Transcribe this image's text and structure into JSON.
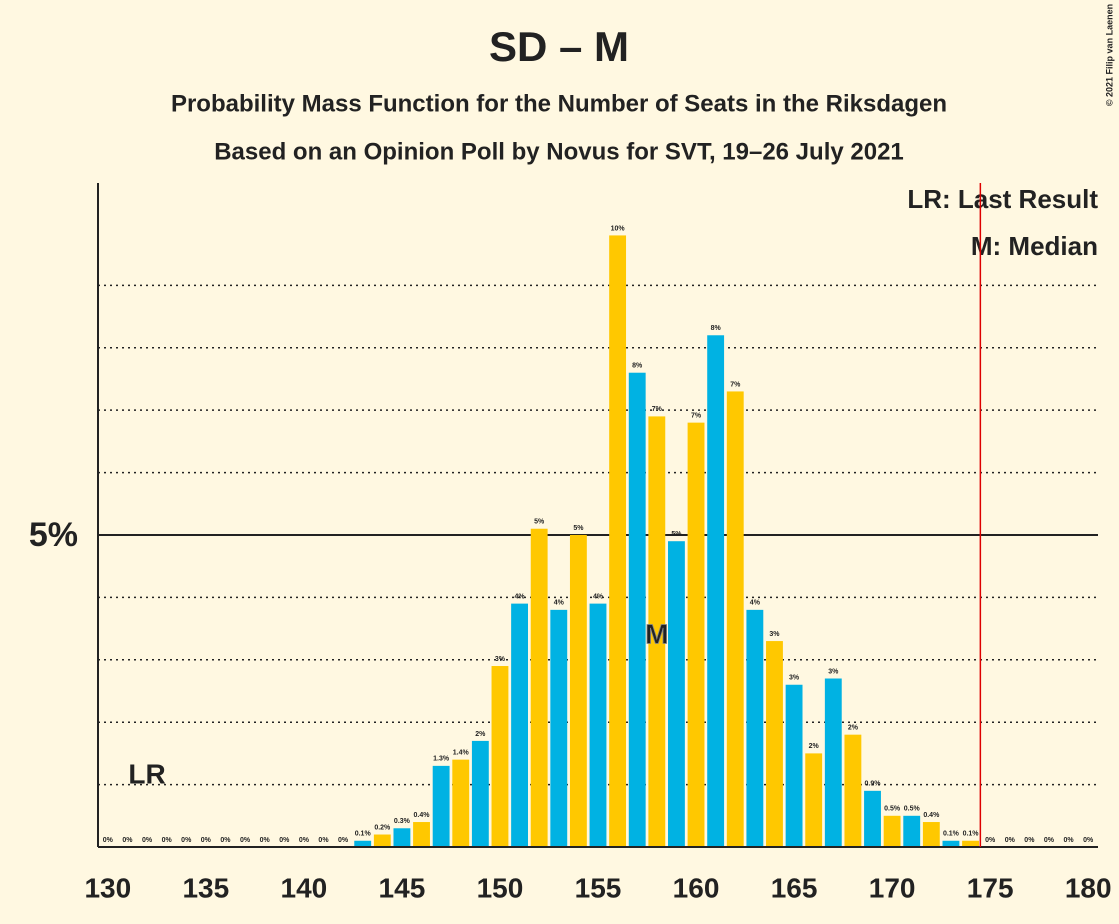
{
  "chart_data": {
    "type": "bar",
    "title": "SD – M",
    "subtitles": [
      "Probability Mass Function for the Number of Seats in the Riksdagen",
      "Based on an Opinion Poll by Novus for SVT, 19–26 July 2021"
    ],
    "x": [
      130,
      131,
      132,
      133,
      134,
      135,
      136,
      137,
      138,
      139,
      140,
      141,
      142,
      143,
      144,
      145,
      146,
      147,
      148,
      149,
      150,
      151,
      152,
      153,
      154,
      155,
      156,
      157,
      158,
      159,
      160,
      161,
      162,
      163,
      164,
      165,
      166,
      167,
      168,
      169,
      170,
      171,
      172,
      173,
      174,
      175,
      176,
      177,
      178,
      179,
      180
    ],
    "values": [
      0,
      0,
      0,
      0,
      0,
      0,
      0,
      0,
      0,
      0,
      0,
      0,
      0,
      0.1,
      0.2,
      0.3,
      0.4,
      1.3,
      1.4,
      1.7,
      2.9,
      3.9,
      5.1,
      3.8,
      5.0,
      3.9,
      9.8,
      7.6,
      6.9,
      4.9,
      6.8,
      8.2,
      7.3,
      3.8,
      3.3,
      2.6,
      1.5,
      2.7,
      1.8,
      0.9,
      0.5,
      0.5,
      0.4,
      0.1,
      0.1,
      0,
      0,
      0,
      0,
      0,
      0
    ],
    "value_labels": [
      "0%",
      "0%",
      "0%",
      "0%",
      "0%",
      "0%",
      "0%",
      "0%",
      "0%",
      "0%",
      "0%",
      "0%",
      "0%",
      "0.1%",
      "0.2%",
      "0.3%",
      "0.4%",
      "1.3%",
      "1.4%",
      "2%",
      "3%",
      "4%",
      "5%",
      "4%",
      "5%",
      "4%",
      "10%",
      "8%",
      "7%",
      "5%",
      "7%",
      "8%",
      "7%",
      "4%",
      "3%",
      "3%",
      "2%",
      "3%",
      "2%",
      "0.9%",
      "0.5%",
      "0.5%",
      "0.4%",
      "0.1%",
      "0.1%",
      "0%",
      "0%",
      "0%",
      "0%",
      "0%",
      "0%"
    ],
    "colors": [
      "#ffc800",
      "#00b2e3"
    ],
    "xlim": [
      129.5,
      180.5
    ],
    "xticks": [
      130,
      135,
      140,
      145,
      150,
      155,
      160,
      165,
      170,
      175,
      180
    ],
    "ylim": [
      0,
      10.64
    ],
    "yticks": [
      {
        "value": 5,
        "label": "5%"
      }
    ],
    "minor_grid": [
      1,
      2,
      3,
      4,
      6,
      7,
      8,
      9
    ],
    "last_result": {
      "label": "LR",
      "x": 132
    },
    "median": {
      "label": "M",
      "x": 158
    },
    "majority": 175,
    "legend": [
      "LR: Last Result",
      "M: Median"
    ],
    "credit": "© 2021 Filip van Laenen"
  }
}
